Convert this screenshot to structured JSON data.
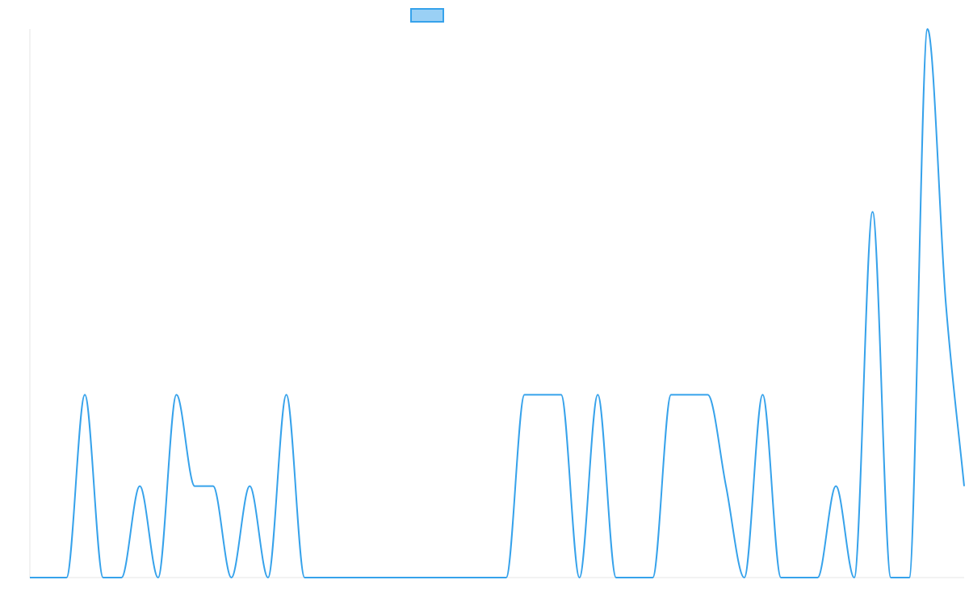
{
  "chart_data": {
    "type": "line",
    "x": [
      0,
      1,
      2,
      3,
      4,
      5,
      6,
      7,
      8,
      9,
      10,
      11,
      12,
      13,
      14,
      15,
      16,
      17,
      18,
      19,
      20,
      21,
      22,
      23,
      24,
      25,
      26,
      27,
      28,
      29,
      30,
      31,
      32,
      33,
      34,
      35,
      36,
      37,
      38,
      39,
      40,
      41,
      42,
      43,
      44,
      45,
      46,
      47,
      48,
      49,
      50,
      51
    ],
    "series": [
      {
        "name": "",
        "values": [
          0,
          0,
          0,
          2,
          0,
          0,
          1,
          0,
          2,
          1,
          1,
          0,
          1,
          0,
          2,
          0,
          0,
          0,
          0,
          0,
          0,
          0,
          0,
          0,
          0,
          0,
          0,
          2,
          2,
          2,
          0,
          2,
          0,
          0,
          0,
          2,
          2,
          2,
          1,
          0,
          2,
          0,
          0,
          0,
          1,
          0,
          4,
          0,
          0,
          6,
          3,
          1
        ]
      }
    ],
    "ylim": [
      0,
      6
    ],
    "grid": false,
    "legend": "top-center",
    "colors": {
      "line": "#36a2eb",
      "legend_fill": "#9ad0f5",
      "axis": "#e6e6e6"
    }
  }
}
